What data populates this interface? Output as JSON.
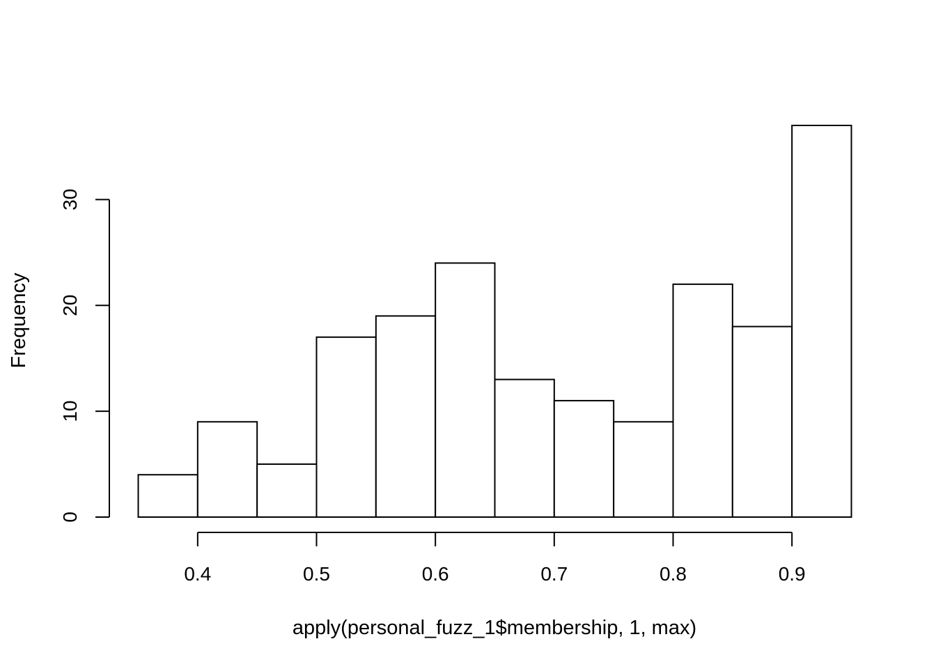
{
  "chart_data": {
    "type": "bar",
    "title": "",
    "xlabel": "apply(personal_fuzz_1$membership, 1, max)",
    "ylabel": "Frequency",
    "bins": [
      {
        "start": 0.35,
        "end": 0.4,
        "count": 4
      },
      {
        "start": 0.4,
        "end": 0.45,
        "count": 9
      },
      {
        "start": 0.45,
        "end": 0.5,
        "count": 5
      },
      {
        "start": 0.5,
        "end": 0.55,
        "count": 17
      },
      {
        "start": 0.55,
        "end": 0.6,
        "count": 19
      },
      {
        "start": 0.6,
        "end": 0.65,
        "count": 24
      },
      {
        "start": 0.65,
        "end": 0.7,
        "count": 13
      },
      {
        "start": 0.7,
        "end": 0.75,
        "count": 11
      },
      {
        "start": 0.75,
        "end": 0.8,
        "count": 9
      },
      {
        "start": 0.8,
        "end": 0.85,
        "count": 22
      },
      {
        "start": 0.85,
        "end": 0.9,
        "count": 18
      },
      {
        "start": 0.9,
        "end": 0.95,
        "count": 37
      }
    ],
    "x_ticks": [
      "0.4",
      "0.5",
      "0.6",
      "0.7",
      "0.8",
      "0.9"
    ],
    "y_ticks": [
      "0",
      "10",
      "20",
      "30"
    ],
    "xlim": [
      0.35,
      0.95
    ],
    "ylim": [
      0,
      37
    ],
    "grid": false,
    "legend": "none",
    "colors": {
      "bar_fill": "#ffffff",
      "bar_stroke": "#000000",
      "axis": "#000000"
    }
  }
}
